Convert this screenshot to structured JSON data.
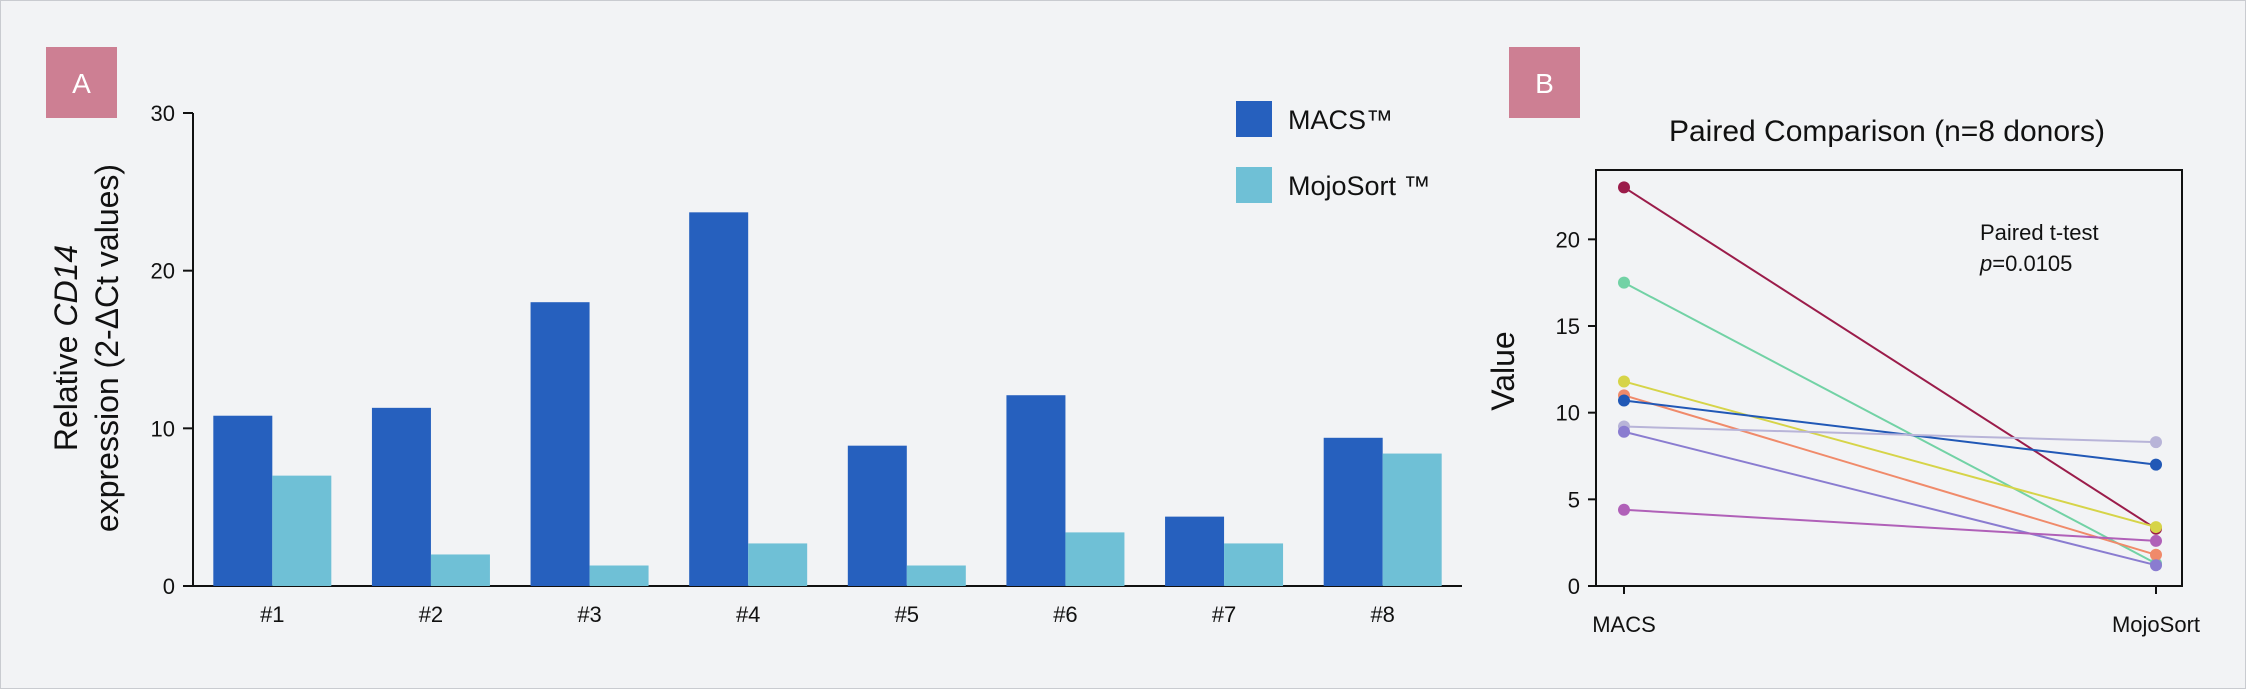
{
  "panels": {
    "a_label": "A",
    "b_label": "B"
  },
  "colors": {
    "badge": "#cd7f93",
    "macs": "#2660be",
    "mojosort": "#6fc0d6",
    "axis": "#111111"
  },
  "chart_data": [
    {
      "type": "bar",
      "categories": [
        "#1",
        "#2",
        "#3",
        "#4",
        "#5",
        "#6",
        "#7",
        "#8"
      ],
      "series": [
        {
          "name": "MACS™",
          "values": [
            10.8,
            11.3,
            18.0,
            23.7,
            8.9,
            12.1,
            4.4,
            9.4
          ]
        },
        {
          "name": "MojoSort ™",
          "values": [
            7.0,
            2.0,
            1.3,
            2.7,
            1.3,
            3.4,
            2.7,
            8.4
          ]
        }
      ],
      "ylabel_line1_prefix": "Relative ",
      "ylabel_line1_italic": "CD14",
      "ylabel_line2": "expression (2-ΔCt values)",
      "ylim": [
        0,
        30
      ],
      "yticks": [
        0,
        10,
        20,
        30
      ],
      "legend_position": "top-right",
      "grid": false
    },
    {
      "type": "line",
      "title": "Paired Comparison (n=8 donors)",
      "ylabel": "Value",
      "categories": [
        "MACS",
        "MojoSort"
      ],
      "ylim": [
        0,
        24
      ],
      "yticks": [
        0,
        5,
        10,
        15,
        20
      ],
      "annotation_line1": "Paired t-test",
      "annotation_p": "p",
      "annotation_value": "=0.0105",
      "pairs": [
        {
          "values": [
            23.0,
            3.3
          ],
          "color": "#9b1c4a"
        },
        {
          "values": [
            17.5,
            1.3
          ],
          "color": "#72d2a5"
        },
        {
          "values": [
            11.8,
            3.4
          ],
          "color": "#d6d448"
        },
        {
          "values": [
            11.0,
            1.8
          ],
          "color": "#f08a6a"
        },
        {
          "values": [
            10.7,
            7.0
          ],
          "color": "#2158b6"
        },
        {
          "values": [
            9.2,
            8.3
          ],
          "color": "#b8b4d8"
        },
        {
          "values": [
            8.9,
            1.2
          ],
          "color": "#8a7cd0"
        },
        {
          "values": [
            4.4,
            2.6
          ],
          "color": "#b060b8"
        }
      ],
      "grid": false
    }
  ]
}
